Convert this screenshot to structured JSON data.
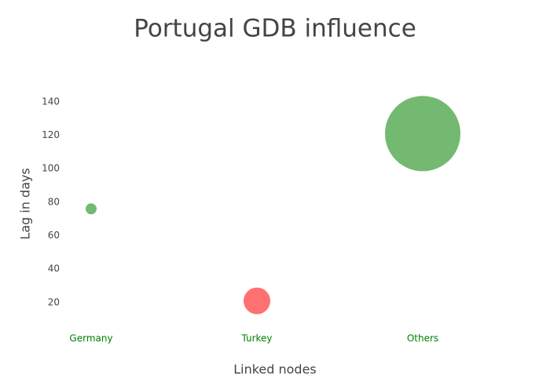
{
  "chart_data": {
    "type": "scatter",
    "title": "Portugal GDB influence",
    "x_label": "Linked nodes",
    "y_label": "Lag in days",
    "categories": [
      "Germany",
      "Turkey",
      "Others"
    ],
    "values": [
      76,
      21,
      121
    ],
    "sizes": [
      14,
      34,
      96
    ],
    "colors": [
      "#74b971",
      "#ff7070",
      "#74b971"
    ],
    "xtick_color": "#008000",
    "ylim": [
      4,
      154
    ],
    "yticks": [
      20,
      40,
      60,
      80,
      100,
      120,
      140
    ],
    "grid": false
  }
}
